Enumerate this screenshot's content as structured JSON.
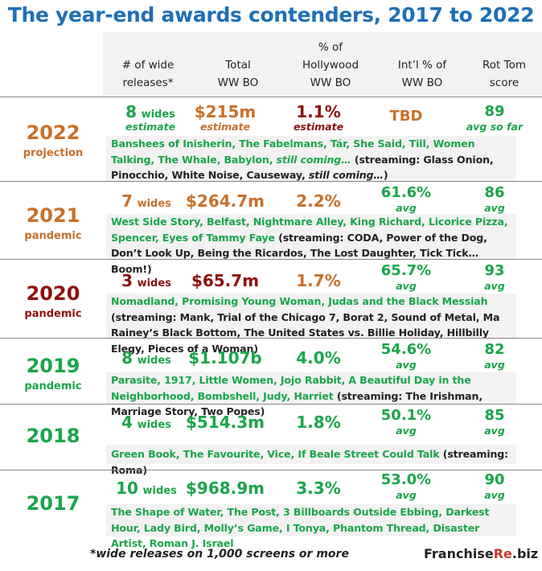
{
  "title": "The year-end awards contenders, 2017 to 2022",
  "headers": {
    "wides": [
      "# of wide",
      "releases*"
    ],
    "total": [
      "Total",
      "WW BO"
    ],
    "hollywood": [
      "% of",
      "Hollywood",
      "WW BO"
    ],
    "intl": [
      "Int’l % of",
      "WW BO"
    ],
    "rt": [
      "Rot Tom",
      "score"
    ]
  },
  "rows": [
    {
      "year": "2022",
      "sub": "projection",
      "wides_num": "8",
      "wides_word": "wides",
      "wides_note": "estimate",
      "total": "$215m",
      "total_note": "estimate",
      "pct": "1.1%",
      "pct_note": "estimate",
      "intl": "TBD",
      "intl_note": "",
      "rt": "89",
      "rt_note": "avg so far",
      "films_a": "Banshees of Inisherin, The Fabelmans, Tár, She Said, Till, Women Talking, The Whale, Babylon, ",
      "films_coming": "still coming…",
      "films_stream": " (streaming: Glass Onion, Pinocchio, White Noise, Causeway, ",
      "films_coming2": "still coming…",
      "films_end": ")"
    },
    {
      "year": "2021",
      "sub": "pandemic",
      "wides_num": "7",
      "wides_word": "wides",
      "total": "$264.7m",
      "pct": "2.2%",
      "intl": "61.6%",
      "intl_note": "avg",
      "rt": "86",
      "rt_note": "avg",
      "films_a": "West Side Story, Belfast, Nightmare Alley, King Richard, Licorice Pizza, Spencer, Eyes of Tammy Faye",
      "films_stream": " (streaming: CODA, Power of the Dog, Don’t Look Up, Being the Ricardos, The Lost Daughter, Tick Tick… Boom!)"
    },
    {
      "year": "2020",
      "sub": "pandemic",
      "wides_num": "3",
      "wides_word": "wides",
      "total": "$65.7m",
      "pct": "1.7%",
      "intl": "65.7%",
      "intl_note": "avg",
      "rt": "93",
      "rt_note": "avg",
      "films_a": "Nomadland, Promising Young Woman, Judas and the Black Messiah",
      "films_stream": " (streaming: Mank, Trial of the Chicago 7, Borat 2, Sound of Metal, Ma Rainey’s Black Bottom, The United States vs. Billie Holiday, Hillbilly Elegy, Pieces of a Woman)"
    },
    {
      "year": "2019",
      "sub": "pandemic",
      "wides_num": "8",
      "wides_word": "wides",
      "total": "$1.107b",
      "pct": "4.0%",
      "intl": "54.6%",
      "intl_note": "avg",
      "rt": "82",
      "rt_note": "avg",
      "films_a": "Parasite, 1917, Little Women, Jojo Rabbit, A Beautiful Day in the Neighborhood, Bombshell, Judy, Harriet",
      "films_stream": " (streaming: The Irishman, Marriage Story, Two Popes)"
    },
    {
      "year": "2018",
      "sub": "",
      "wides_num": "4",
      "wides_word": "wides",
      "total": "$514.3m",
      "pct": "1.8%",
      "intl": "50.1%",
      "intl_note": "avg",
      "rt": "85",
      "rt_note": "avg",
      "films_a": "Green Book, The Favourite, Vice, If Beale Street Could Talk",
      "films_stream": " (streaming: Roma)"
    },
    {
      "year": "2017",
      "sub": "",
      "wides_num": "10",
      "wides_word": "wides",
      "total": "$968.9m",
      "pct": "3.3%",
      "intl": "53.0%",
      "intl_note": "avg",
      "rt": "90",
      "rt_note": "avg",
      "films_a": "The Shape of Water, The Post, 3 Billboards Outside Ebbing, Darkest Hour, Lady Bird, Molly’s Game, I Tonya, Phantom Thread, Disaster Artist, Roman J. Israel",
      "films_stream": ""
    }
  ],
  "footnote": "*wide releases on 1,000 screens or more",
  "brand": {
    "a": "Franchise",
    "b": "Re",
    "c": ".biz"
  },
  "colors": {
    "title": "#1f6fb5",
    "green": "#1aa54b",
    "orange": "#c8702a",
    "darkred": "#8c1010"
  }
}
